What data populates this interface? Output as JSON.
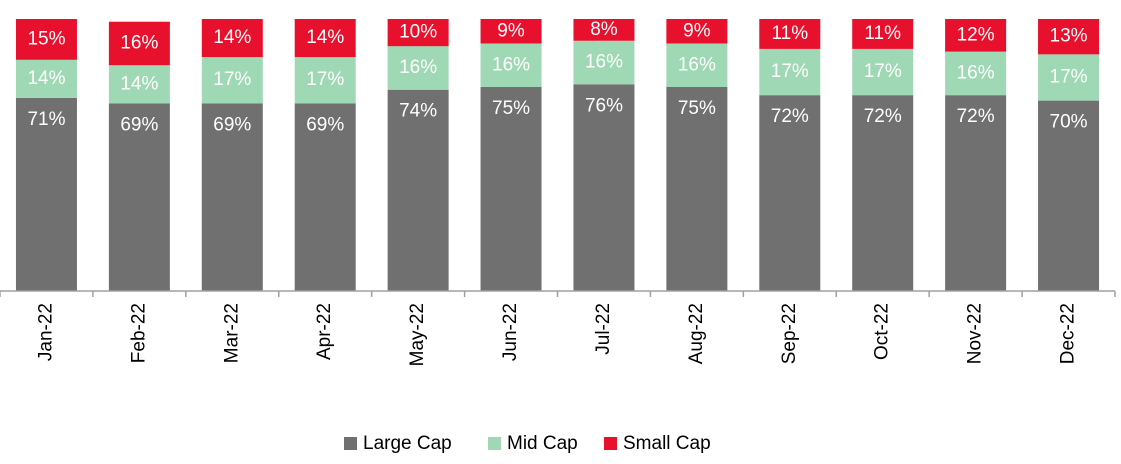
{
  "chart_data": {
    "type": "bar",
    "stacked": true,
    "categories": [
      "Jan-22",
      "Feb-22",
      "Mar-22",
      "Apr-22",
      "May-22",
      "Jun-22",
      "Jul-22",
      "Aug-22",
      "Sep-22",
      "Oct-22",
      "Nov-22",
      "Dec-22"
    ],
    "series": [
      {
        "name": "Large Cap",
        "color": "#707070",
        "values": [
          71,
          69,
          69,
          69,
          74,
          75,
          76,
          75,
          72,
          72,
          72,
          70
        ],
        "labels": [
          "71%",
          "69%",
          "69%",
          "69%",
          "74%",
          "75%",
          "76%",
          "75%",
          "72%",
          "72%",
          "72%",
          "70%"
        ]
      },
      {
        "name": "Mid Cap",
        "color": "#9fd8b4",
        "values": [
          14,
          14,
          17,
          17,
          16,
          16,
          16,
          16,
          17,
          17,
          16,
          17
        ],
        "labels": [
          "14%",
          "14%",
          "17%",
          "17%",
          "16%",
          "16%",
          "16%",
          "16%",
          "17%",
          "17%",
          "16%",
          "17%"
        ]
      },
      {
        "name": "Small Cap",
        "color": "#e8112d",
        "values": [
          15,
          16,
          14,
          14,
          10,
          9,
          8,
          9,
          11,
          11,
          12,
          13
        ],
        "labels": [
          "15%",
          "16%",
          "14%",
          "14%",
          "10%",
          "9%",
          "8%",
          "9%",
          "11%",
          "11%",
          "12%",
          "13%"
        ]
      }
    ],
    "legend_position": "bottom",
    "grid": false,
    "ylim": [
      0,
      100
    ]
  }
}
